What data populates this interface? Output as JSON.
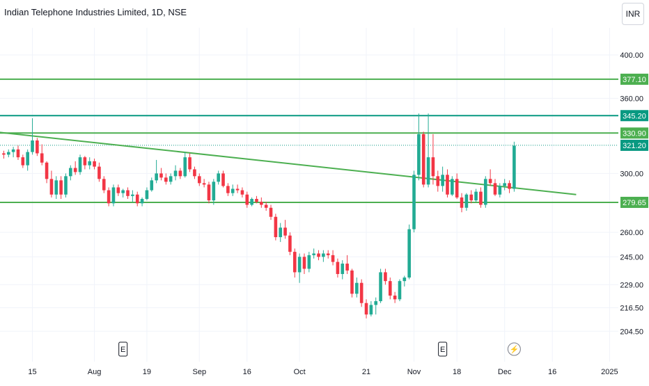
{
  "header": {
    "title": "Indian Telephone Industries Limited, 1D, NSE",
    "currency": "INR"
  },
  "colors": {
    "up": "#22ab94",
    "down": "#f23645",
    "level": "#4caf50",
    "level_strong": "#089981",
    "grid": "#f0f3fa",
    "axis_text": "#131722"
  },
  "chart_data": {
    "type": "candlestick",
    "ylim": [
      200.5,
      407.5
    ],
    "y_scale": "log",
    "y_ticks": [
      "400.00",
      "360.00",
      "300.00",
      "260.00",
      "245.00",
      "229.00",
      "216.50",
      "204.50"
    ],
    "x_ticks": [
      "15",
      "Aug",
      "19",
      "Sep",
      "16",
      "Oct",
      "21",
      "Nov",
      "18",
      "Dec",
      "16",
      "2025"
    ],
    "levels": [
      {
        "label": "377.10",
        "value": 377.1,
        "style": "solid",
        "color": "#4caf50"
      },
      {
        "label": "345.20",
        "value": 345.2,
        "style": "solid",
        "color": "#089981"
      },
      {
        "label": "330.90",
        "value": 330.9,
        "style": "solid",
        "color": "#4caf50"
      },
      {
        "label": "321.20",
        "value": 321.2,
        "style": "dotted",
        "color": "#089981"
      },
      {
        "label": "279.65",
        "value": 279.65,
        "style": "solid",
        "color": "#4caf50"
      }
    ],
    "trendline": {
      "from": {
        "bar": -7,
        "price": 334
      },
      "to": {
        "bar": 120,
        "price": 285
      },
      "color": "#4caf50"
    },
    "event_markers": [
      {
        "label": "E",
        "type": "earnings",
        "bar": 25
      },
      {
        "label": "E",
        "type": "earnings",
        "bar": 92
      },
      {
        "label": "⚡",
        "type": "dividend",
        "bar": 107
      }
    ],
    "candles": [
      [
        315,
        317,
        311,
        314
      ],
      [
        314,
        318,
        312,
        316
      ],
      [
        316,
        320,
        312,
        318
      ],
      [
        318,
        321,
        310,
        312
      ],
      [
        312,
        314,
        304,
        306
      ],
      [
        306,
        318,
        302,
        316
      ],
      [
        316,
        343,
        314,
        325
      ],
      [
        325,
        327,
        313,
        315
      ],
      [
        315,
        322,
        306,
        308
      ],
      [
        308,
        309,
        293,
        296
      ],
      [
        296,
        302,
        283,
        285
      ],
      [
        285,
        298,
        282,
        295
      ],
      [
        295,
        298,
        282,
        285
      ],
      [
        285,
        300,
        283,
        298
      ],
      [
        298,
        306,
        295,
        304
      ],
      [
        304,
        309,
        299,
        301
      ],
      [
        301,
        314,
        299,
        312
      ],
      [
        312,
        313,
        303,
        306
      ],
      [
        306,
        312,
        303,
        309
      ],
      [
        309,
        311,
        303,
        305
      ],
      [
        305,
        308,
        294,
        296
      ],
      [
        296,
        298,
        286,
        288
      ],
      [
        288,
        290,
        277,
        279
      ],
      [
        279,
        292,
        277,
        290
      ],
      [
        290,
        292,
        284,
        286
      ],
      [
        286,
        289,
        283,
        288
      ],
      [
        288,
        290,
        282,
        284
      ],
      [
        284,
        288,
        280,
        285
      ],
      [
        285,
        287,
        277,
        279
      ],
      [
        279,
        283,
        277,
        282
      ],
      [
        282,
        290,
        281,
        288
      ],
      [
        288,
        297,
        287,
        295
      ],
      [
        295,
        310,
        293,
        300
      ],
      [
        300,
        304,
        295,
        297
      ],
      [
        297,
        300,
        292,
        294
      ],
      [
        294,
        300,
        292,
        298
      ],
      [
        298,
        306,
        295,
        302
      ],
      [
        302,
        304,
        296,
        298
      ],
      [
        298,
        316,
        297,
        312
      ],
      [
        312,
        315,
        301,
        303
      ],
      [
        303,
        305,
        296,
        298
      ],
      [
        298,
        300,
        291,
        293
      ],
      [
        293,
        296,
        290,
        292
      ],
      [
        292,
        294,
        279,
        281
      ],
      [
        281,
        296,
        278,
        294
      ],
      [
        294,
        302,
        292,
        300
      ],
      [
        300,
        302,
        290,
        291
      ],
      [
        291,
        293,
        284,
        286
      ],
      [
        286,
        292,
        284,
        289
      ],
      [
        289,
        292,
        286,
        288
      ],
      [
        288,
        290,
        283,
        285
      ],
      [
        285,
        287,
        276,
        278
      ],
      [
        278,
        283,
        277,
        282
      ],
      [
        282,
        284,
        279,
        280
      ],
      [
        280,
        283,
        276,
        278
      ],
      [
        278,
        280,
        274,
        276
      ],
      [
        276,
        278,
        268,
        270
      ],
      [
        270,
        272,
        255,
        257
      ],
      [
        257,
        266,
        254,
        263
      ],
      [
        263,
        268,
        256,
        258
      ],
      [
        258,
        260,
        246,
        248
      ],
      [
        248,
        250,
        233,
        236
      ],
      [
        236,
        247,
        230,
        245
      ],
      [
        245,
        247,
        235,
        238
      ],
      [
        238,
        248,
        236,
        246
      ],
      [
        246,
        250,
        244,
        247
      ],
      [
        247,
        249,
        243,
        245
      ],
      [
        245,
        249,
        242,
        247
      ],
      [
        247,
        249,
        244,
        246
      ],
      [
        246,
        249,
        240,
        242
      ],
      [
        242,
        244,
        233,
        235
      ],
      [
        235,
        243,
        232,
        241
      ],
      [
        241,
        246,
        235,
        237
      ],
      [
        237,
        238,
        222,
        224
      ],
      [
        224,
        233,
        222,
        230
      ],
      [
        230,
        232,
        217,
        219
      ],
      [
        219,
        221,
        211,
        213
      ],
      [
        213,
        220,
        212,
        218
      ],
      [
        218,
        222,
        213,
        220
      ],
      [
        220,
        238,
        219,
        236
      ],
      [
        236,
        238,
        229,
        231
      ],
      [
        231,
        233,
        221,
        223
      ],
      [
        223,
        225,
        219,
        221
      ],
      [
        221,
        232,
        220,
        231
      ],
      [
        231,
        234,
        228,
        233
      ],
      [
        233,
        265,
        232,
        262
      ],
      [
        262,
        302,
        260,
        299
      ],
      [
        299,
        347,
        295,
        330
      ],
      [
        330,
        332,
        290,
        292
      ],
      [
        292,
        347,
        290,
        312
      ],
      [
        312,
        330,
        292,
        298
      ],
      [
        298,
        302,
        287,
        291
      ],
      [
        291,
        305,
        287,
        299
      ],
      [
        299,
        303,
        283,
        285
      ],
      [
        285,
        298,
        284,
        296
      ],
      [
        296,
        300,
        282,
        283
      ],
      [
        283,
        286,
        273,
        276
      ],
      [
        276,
        286,
        274,
        285
      ],
      [
        285,
        288,
        279,
        281
      ],
      [
        281,
        289,
        280,
        287
      ],
      [
        287,
        290,
        276,
        278
      ],
      [
        278,
        298,
        276,
        296
      ],
      [
        296,
        303,
        291,
        293
      ],
      [
        293,
        296,
        284,
        285
      ],
      [
        285,
        293,
        283,
        291
      ],
      [
        291,
        296,
        288,
        293
      ],
      [
        293,
        295,
        286,
        289
      ],
      [
        289,
        324,
        287,
        321
      ]
    ]
  }
}
